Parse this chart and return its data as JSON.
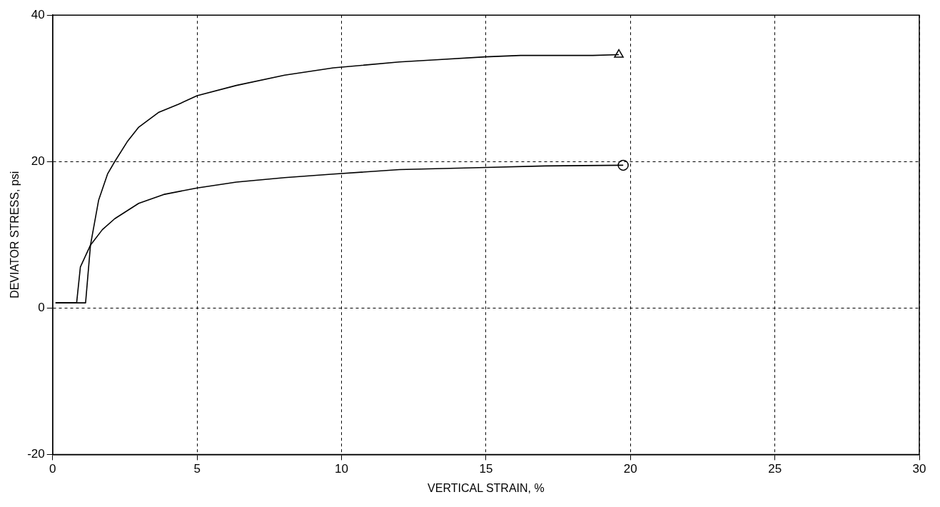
{
  "chart_data": {
    "type": "line",
    "xlabel": "VERTICAL STRAIN, %",
    "ylabel": "DEVIATOR STRESS, psi",
    "xlim": [
      0,
      30
    ],
    "ylim": [
      -20,
      40
    ],
    "xticks": [
      0,
      5,
      10,
      15,
      20,
      25,
      30
    ],
    "yticks": [
      -20,
      0,
      20,
      40
    ],
    "grid": true,
    "legend": false,
    "marker": "none",
    "line_style": "solid",
    "series": [
      {
        "color": "#000000",
        "x": [
          0.1,
          0.3,
          1.14,
          1.31,
          1.59,
          1.9,
          2.15,
          2.58,
          2.98,
          3.66,
          4.34,
          5,
          6.36,
          8.03,
          9.72,
          12,
          13.26,
          14.97,
          16.2,
          18.7,
          19.6
        ],
        "values": [
          0.7,
          0.7,
          0.7,
          8.6,
          14.7,
          18.3,
          20,
          22.7,
          24.7,
          26.7,
          27.8,
          29,
          30.4,
          31.8,
          32.8,
          33.6,
          33.9,
          34.3,
          34.5,
          34.5,
          34.6
        ]
      },
      {
        "color": "#000000",
        "x": [
          0.1,
          0.3,
          0.83,
          0.96,
          1.31,
          1.72,
          2.15,
          2.98,
          3.84,
          5,
          6.36,
          8.03,
          9.72,
          12,
          15,
          17.05,
          19.75
        ],
        "values": [
          0.7,
          0.7,
          0.7,
          5.6,
          8.6,
          10.7,
          12.2,
          14.3,
          15.5,
          16.4,
          17.2,
          17.8,
          18.3,
          18.9,
          19.2,
          19.4,
          19.5
        ]
      },
      {
        "type": "scatter",
        "marker": "triangle",
        "color": "#000000",
        "x": [
          19.6
        ],
        "values": [
          34.6
        ]
      },
      {
        "type": "scatter",
        "marker": "circle",
        "color": "#000000",
        "x": [
          19.75
        ],
        "values": [
          19.5
        ]
      }
    ]
  }
}
